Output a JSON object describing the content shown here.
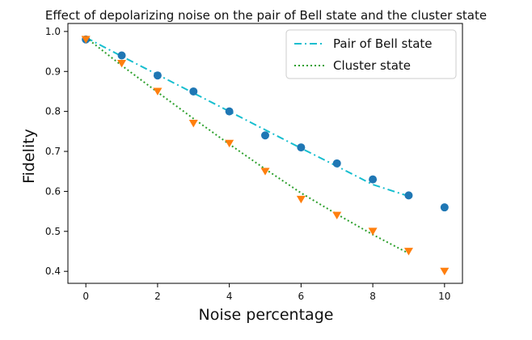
{
  "chart_data": {
    "type": "line",
    "title": "Effect of depolarizing noise on the pair of Bell state and the cluster state",
    "xlabel": "Noise percentage",
    "ylabel": "Fidelity",
    "xlim": [
      -0.5,
      10.5
    ],
    "ylim": [
      0.37,
      1.02
    ],
    "xticks": [
      0,
      2,
      4,
      6,
      8,
      10
    ],
    "yticks": [
      0.4,
      0.5,
      0.6,
      0.7,
      0.8,
      0.9,
      1.0
    ],
    "ytick_labels": [
      "0.4",
      "0.5",
      "0.6",
      "0.7",
      "0.8",
      "0.9",
      "1.0"
    ],
    "grid": false,
    "legend_position": "top-right",
    "x": [
      0,
      1,
      2,
      3,
      4,
      5,
      6,
      7,
      8,
      9,
      10
    ],
    "series": [
      {
        "name": "Pair of Bell state",
        "marker": "circle",
        "marker_color": "#1f77b4",
        "values": [
          0.98,
          0.94,
          0.89,
          0.85,
          0.8,
          0.74,
          0.71,
          0.67,
          0.63,
          0.59,
          0.56
        ],
        "fit": {
          "x": [
            0,
            1,
            2,
            3,
            4,
            5,
            6,
            7,
            8,
            9
          ],
          "y": [
            0.985,
            0.938,
            0.892,
            0.846,
            0.8,
            0.754,
            0.708,
            0.663,
            0.617,
            0.588
          ],
          "style": "dashdot",
          "color": "#17becf"
        }
      },
      {
        "name": "Cluster state",
        "marker": "triangle-down",
        "marker_color": "#ff7f0e",
        "values": [
          0.98,
          0.92,
          0.85,
          0.77,
          0.72,
          0.65,
          0.58,
          0.54,
          0.5,
          0.45,
          0.4
        ],
        "fit": {
          "x": [
            0,
            1,
            2,
            3,
            4,
            5,
            6,
            7,
            8,
            9
          ],
          "y": [
            0.985,
            0.915,
            0.848,
            0.782,
            0.718,
            0.656,
            0.596,
            0.543,
            0.492,
            0.445
          ],
          "style": "dotted",
          "color": "#2ca02c"
        }
      }
    ]
  }
}
